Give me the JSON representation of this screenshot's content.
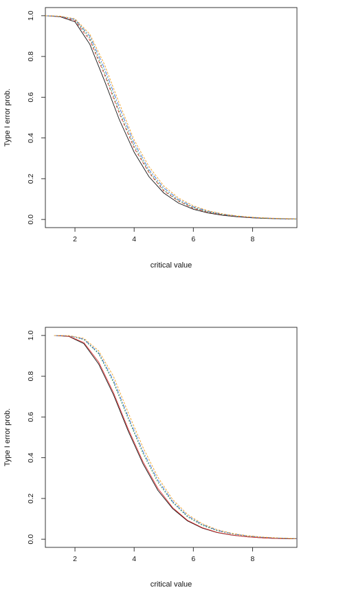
{
  "chart_data": [
    {
      "type": "line",
      "xlabel": "critical value",
      "ylabel": "Type I error prob.",
      "xlim": [
        1,
        9.5
      ],
      "ylim": [
        -0.04,
        1.04
      ],
      "xticks": [
        "2",
        "4",
        "6",
        "8"
      ],
      "yticks": [
        "0.0",
        "0.2",
        "0.4",
        "0.6",
        "0.8",
        "1.0"
      ],
      "grid": false,
      "legend": "none",
      "x": [
        1.0,
        1.5,
        2.0,
        2.5,
        3.0,
        3.5,
        4.0,
        4.5,
        5.0,
        5.5,
        6.0,
        6.5,
        7.0,
        7.5,
        8.0,
        8.5,
        9.0,
        9.5
      ],
      "series": [
        {
          "color": "#111111",
          "dash": "",
          "values": [
            1.0,
            0.995,
            0.97,
            0.86,
            0.68,
            0.49,
            0.33,
            0.21,
            0.13,
            0.08,
            0.05,
            0.032,
            0.02,
            0.013,
            0.008,
            0.005,
            0.003,
            0.002
          ]
        },
        {
          "color": "#e03030",
          "dash": "4,3",
          "values": [
            1.0,
            0.996,
            0.975,
            0.88,
            0.71,
            0.52,
            0.35,
            0.23,
            0.14,
            0.09,
            0.055,
            0.035,
            0.022,
            0.014,
            0.009,
            0.006,
            0.004,
            0.002
          ]
        },
        {
          "color": "#3a9a3a",
          "dash": "2,2",
          "values": [
            1.0,
            0.997,
            0.98,
            0.89,
            0.72,
            0.53,
            0.36,
            0.235,
            0.145,
            0.092,
            0.058,
            0.037,
            0.023,
            0.015,
            0.01,
            0.006,
            0.004,
            0.002
          ]
        },
        {
          "color": "#3a6ad8",
          "dash": "6,2,2,2",
          "values": [
            1.0,
            0.997,
            0.982,
            0.9,
            0.74,
            0.55,
            0.375,
            0.245,
            0.155,
            0.098,
            0.062,
            0.04,
            0.025,
            0.016,
            0.01,
            0.007,
            0.004,
            0.003
          ]
        },
        {
          "color": "#f0a020",
          "dash": "3,2",
          "values": [
            1.0,
            0.998,
            0.985,
            0.91,
            0.76,
            0.57,
            0.39,
            0.26,
            0.165,
            0.105,
            0.067,
            0.043,
            0.027,
            0.017,
            0.011,
            0.007,
            0.005,
            0.003
          ]
        }
      ]
    },
    {
      "type": "line",
      "xlabel": "critical value",
      "ylabel": "Type I error prob.",
      "xlim": [
        1,
        9.5
      ],
      "ylim": [
        -0.04,
        1.04
      ],
      "xticks": [
        "2",
        "4",
        "6",
        "8"
      ],
      "yticks": [
        "0.0",
        "0.2",
        "0.4",
        "0.6",
        "0.8",
        "1.0"
      ],
      "grid": false,
      "legend": "none",
      "x": [
        1.3,
        1.8,
        2.3,
        2.8,
        3.3,
        3.8,
        4.3,
        4.8,
        5.3,
        5.8,
        6.3,
        6.8,
        7.3,
        7.8,
        8.3,
        8.8,
        9.3,
        9.5
      ],
      "series": [
        {
          "color": "#111111",
          "dash": "",
          "values": [
            1.0,
            0.995,
            0.96,
            0.86,
            0.71,
            0.53,
            0.37,
            0.24,
            0.15,
            0.09,
            0.055,
            0.033,
            0.02,
            0.012,
            0.007,
            0.004,
            0.002,
            0.002
          ]
        },
        {
          "color": "#e03030",
          "dash": "",
          "values": [
            1.0,
            0.996,
            0.965,
            0.87,
            0.72,
            0.54,
            0.38,
            0.25,
            0.155,
            0.093,
            0.057,
            0.034,
            0.021,
            0.012,
            0.007,
            0.004,
            0.003,
            0.002
          ]
        },
        {
          "color": "#3a9a3a",
          "dash": "2,2",
          "values": [
            1.0,
            0.998,
            0.98,
            0.91,
            0.77,
            0.59,
            0.42,
            0.28,
            0.18,
            0.11,
            0.068,
            0.042,
            0.026,
            0.016,
            0.01,
            0.006,
            0.004,
            0.003
          ]
        },
        {
          "color": "#3a6ad8",
          "dash": "6,2,2,2",
          "values": [
            1.0,
            0.998,
            0.982,
            0.915,
            0.78,
            0.6,
            0.43,
            0.29,
            0.185,
            0.115,
            0.072,
            0.044,
            0.027,
            0.017,
            0.01,
            0.006,
            0.004,
            0.003
          ]
        },
        {
          "color": "#f0a020",
          "dash": "3,2",
          "values": [
            1.0,
            0.999,
            0.986,
            0.925,
            0.8,
            0.62,
            0.45,
            0.305,
            0.195,
            0.122,
            0.076,
            0.047,
            0.029,
            0.018,
            0.011,
            0.007,
            0.004,
            0.003
          ]
        }
      ]
    }
  ]
}
